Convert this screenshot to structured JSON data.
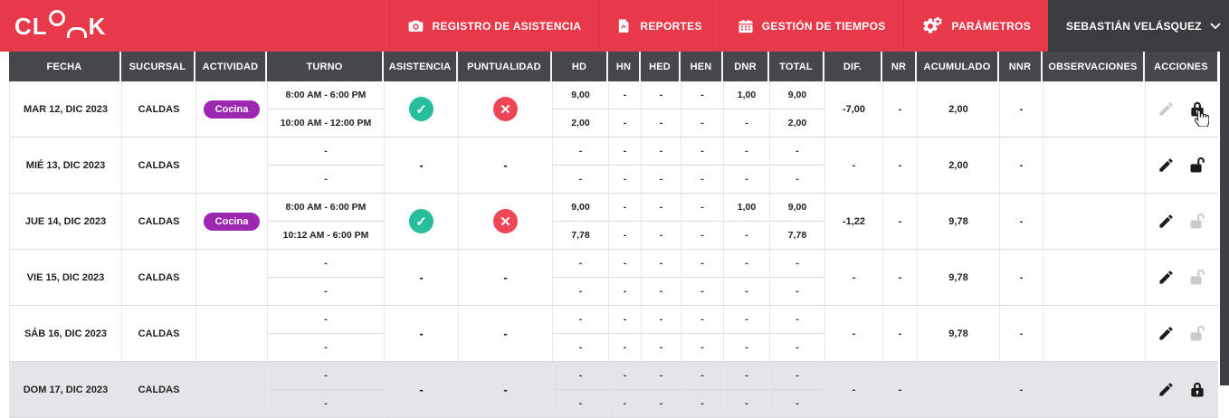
{
  "colors": {
    "nav_red": "#E8394B",
    "header_dark": "#46474C",
    "user_dark": "#3B3C40",
    "badge_purple": "#9C27B0",
    "check_teal": "#28BD9C",
    "cross_red": "#EF4655"
  },
  "nav": {
    "logo": "CLOOK",
    "logo_cl": "CL",
    "logo_k": "K",
    "items": [
      {
        "label": "REGISTRO DE ASISTENCIA",
        "icon": "camera-icon"
      },
      {
        "label": "REPORTES",
        "icon": "report-file-icon"
      },
      {
        "label": "GESTIÓN DE TIEMPOS",
        "icon": "calendar-icon"
      },
      {
        "label": "PARÁMETROS",
        "icon": "gears-icon"
      }
    ],
    "user": {
      "name": "SEBASTIÁN VELÁSQUEZ",
      "icon": "user-avatar",
      "chevron": "chevron-down-icon"
    }
  },
  "table": {
    "columns": [
      "FECHA",
      "SUCURSAL",
      "ACTIVIDAD",
      "TURNO",
      "ASISTENCIA",
      "PUNTUALIDAD",
      "HD",
      "HN",
      "HED",
      "HEN",
      "DNR",
      "TOTAL",
      "DIF.",
      "NR",
      "ACUMULADO",
      "NNR",
      "OBSERVACIONES",
      "ACCIONES"
    ],
    "rows": [
      {
        "fecha": "MAR 12, DIC 2023",
        "sucursal": "CALDAS",
        "actividad": "Cocina",
        "turno": [
          "8:00 AM - 6:00 PM",
          "10:00 AM - 12:00 PM"
        ],
        "asistencia": "check",
        "puntualidad": "cross",
        "hd": [
          "9,00",
          "2,00"
        ],
        "hn": [
          "-",
          "-"
        ],
        "hed": [
          "-",
          "-"
        ],
        "hen": [
          "-",
          "-"
        ],
        "dnr": [
          "1,00",
          "-"
        ],
        "total": [
          "9,00",
          "2,00"
        ],
        "dif": "-7,00",
        "nr": "-",
        "acumulado": "2,00",
        "nnr": "-",
        "observaciones": "",
        "acciones": {
          "edit_enabled": false,
          "lock": "locked",
          "lock_enabled": true,
          "cursor": true
        },
        "highlighted": false
      },
      {
        "fecha": "MIÉ 13, DIC 2023",
        "sucursal": "CALDAS",
        "actividad": "",
        "turno": [
          "-",
          "-"
        ],
        "asistencia": "-",
        "puntualidad": "-",
        "hd": [
          "-",
          "-"
        ],
        "hn": [
          "-",
          "-"
        ],
        "hed": [
          "-",
          "-"
        ],
        "hen": [
          "-",
          "-"
        ],
        "dnr": [
          "-",
          "-"
        ],
        "total": [
          "-",
          "-"
        ],
        "dif": "-",
        "nr": "-",
        "acumulado": "2,00",
        "nnr": "-",
        "observaciones": "",
        "acciones": {
          "edit_enabled": true,
          "lock": "unlocked",
          "lock_enabled": true,
          "cursor": false
        },
        "highlighted": false
      },
      {
        "fecha": "JUE 14, DIC 2023",
        "sucursal": "CALDAS",
        "actividad": "Cocina",
        "turno": [
          "8:00 AM - 6:00 PM",
          "10:12 AM - 6:00 PM"
        ],
        "asistencia": "check",
        "puntualidad": "cross",
        "hd": [
          "9,00",
          "7,78"
        ],
        "hn": [
          "-",
          "-"
        ],
        "hed": [
          "-",
          "-"
        ],
        "hen": [
          "-",
          "-"
        ],
        "dnr": [
          "1,00",
          "-"
        ],
        "total": [
          "9,00",
          "7,78"
        ],
        "dif": "-1,22",
        "nr": "-",
        "acumulado": "9,78",
        "nnr": "-",
        "observaciones": "",
        "acciones": {
          "edit_enabled": true,
          "lock": "unlocked",
          "lock_enabled": false,
          "cursor": false
        },
        "highlighted": false
      },
      {
        "fecha": "VIE 15, DIC 2023",
        "sucursal": "CALDAS",
        "actividad": "",
        "turno": [
          "-",
          "-"
        ],
        "asistencia": "-",
        "puntualidad": "-",
        "hd": [
          "-",
          "-"
        ],
        "hn": [
          "-",
          "-"
        ],
        "hed": [
          "-",
          "-"
        ],
        "hen": [
          "-",
          "-"
        ],
        "dnr": [
          "-",
          "-"
        ],
        "total": [
          "-",
          "-"
        ],
        "dif": "-",
        "nr": "-",
        "acumulado": "9,78",
        "nnr": "-",
        "observaciones": "",
        "acciones": {
          "edit_enabled": true,
          "lock": "unlocked",
          "lock_enabled": false,
          "cursor": false
        },
        "highlighted": false
      },
      {
        "fecha": "SÁB 16, DIC 2023",
        "sucursal": "CALDAS",
        "actividad": "",
        "turno": [
          "-",
          "-"
        ],
        "asistencia": "-",
        "puntualidad": "-",
        "hd": [
          "-",
          "-"
        ],
        "hn": [
          "-",
          "-"
        ],
        "hed": [
          "-",
          "-"
        ],
        "hen": [
          "-",
          "-"
        ],
        "dnr": [
          "-",
          "-"
        ],
        "total": [
          "-",
          "-"
        ],
        "dif": "-",
        "nr": "-",
        "acumulado": "9,78",
        "nnr": "-",
        "observaciones": "",
        "acciones": {
          "edit_enabled": true,
          "lock": "unlocked",
          "lock_enabled": false,
          "cursor": false
        },
        "highlighted": false
      },
      {
        "fecha": "DOM 17, DIC 2023",
        "sucursal": "CALDAS",
        "actividad": "",
        "turno": [
          "-",
          "-"
        ],
        "asistencia": "-",
        "puntualidad": "-",
        "hd": [
          "-",
          "-"
        ],
        "hn": [
          "-",
          "-"
        ],
        "hed": [
          "-",
          "-"
        ],
        "hen": [
          "-",
          "-"
        ],
        "dnr": [
          "-",
          "-"
        ],
        "total": [
          "-",
          "-"
        ],
        "dif": "-",
        "nr": "-",
        "acumulado": "",
        "nnr": "-",
        "observaciones": "",
        "acciones": {
          "edit_enabled": true,
          "lock": "locked",
          "lock_enabled": true,
          "cursor": false
        },
        "highlighted": true
      }
    ]
  }
}
